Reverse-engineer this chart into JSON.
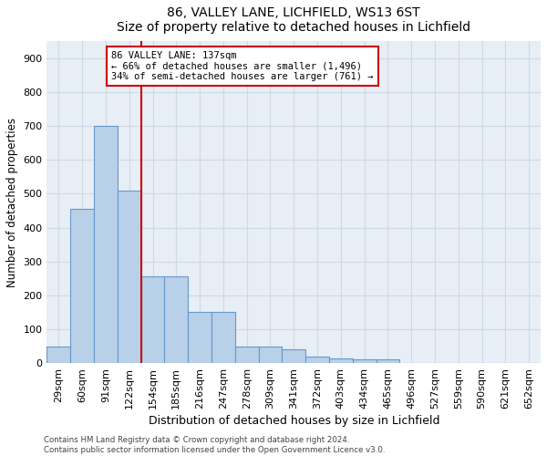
{
  "title1": "86, VALLEY LANE, LICHFIELD, WS13 6ST",
  "title2": "Size of property relative to detached houses in Lichfield",
  "xlabel": "Distribution of detached houses by size in Lichfield",
  "ylabel": "Number of detached properties",
  "bin_labels": [
    "29sqm",
    "60sqm",
    "91sqm",
    "122sqm",
    "154sqm",
    "185sqm",
    "216sqm",
    "247sqm",
    "278sqm",
    "309sqm",
    "341sqm",
    "372sqm",
    "403sqm",
    "434sqm",
    "465sqm",
    "496sqm",
    "527sqm",
    "559sqm",
    "590sqm",
    "621sqm",
    "652sqm"
  ],
  "bar_values": [
    50,
    455,
    700,
    510,
    255,
    255,
    150,
    150,
    50,
    50,
    40,
    20,
    15,
    10,
    10,
    0,
    0,
    0,
    0,
    0,
    0
  ],
  "bar_color": "#b8d0e8",
  "bar_edge_color": "#6699cc",
  "grid_color": "#d0d8e4",
  "vline_x": 4.0,
  "vline_color": "#cc0000",
  "annotation_text": "86 VALLEY LANE: 137sqm\n← 66% of detached houses are smaller (1,496)\n34% of semi-detached houses are larger (761) →",
  "annotation_box_color": "white",
  "annotation_box_edge": "#cc0000",
  "ylim": [
    0,
    950
  ],
  "yticks": [
    0,
    100,
    200,
    300,
    400,
    500,
    600,
    700,
    800,
    900
  ],
  "footnote": "Contains HM Land Registry data © Crown copyright and database right 2024.\nContains public sector information licensed under the Open Government Licence v3.0.",
  "bg_color": "#e8eef5",
  "figsize": [
    6.0,
    5.0
  ],
  "dpi": 100
}
